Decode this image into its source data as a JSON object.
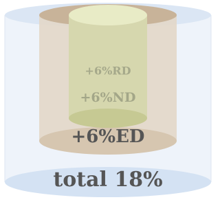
{
  "layers": [
    {
      "label": "+6%RD"
    },
    {
      "label": "+6%ND"
    },
    {
      "label": "+6%ED"
    },
    {
      "label": "total 18%"
    }
  ]
}
